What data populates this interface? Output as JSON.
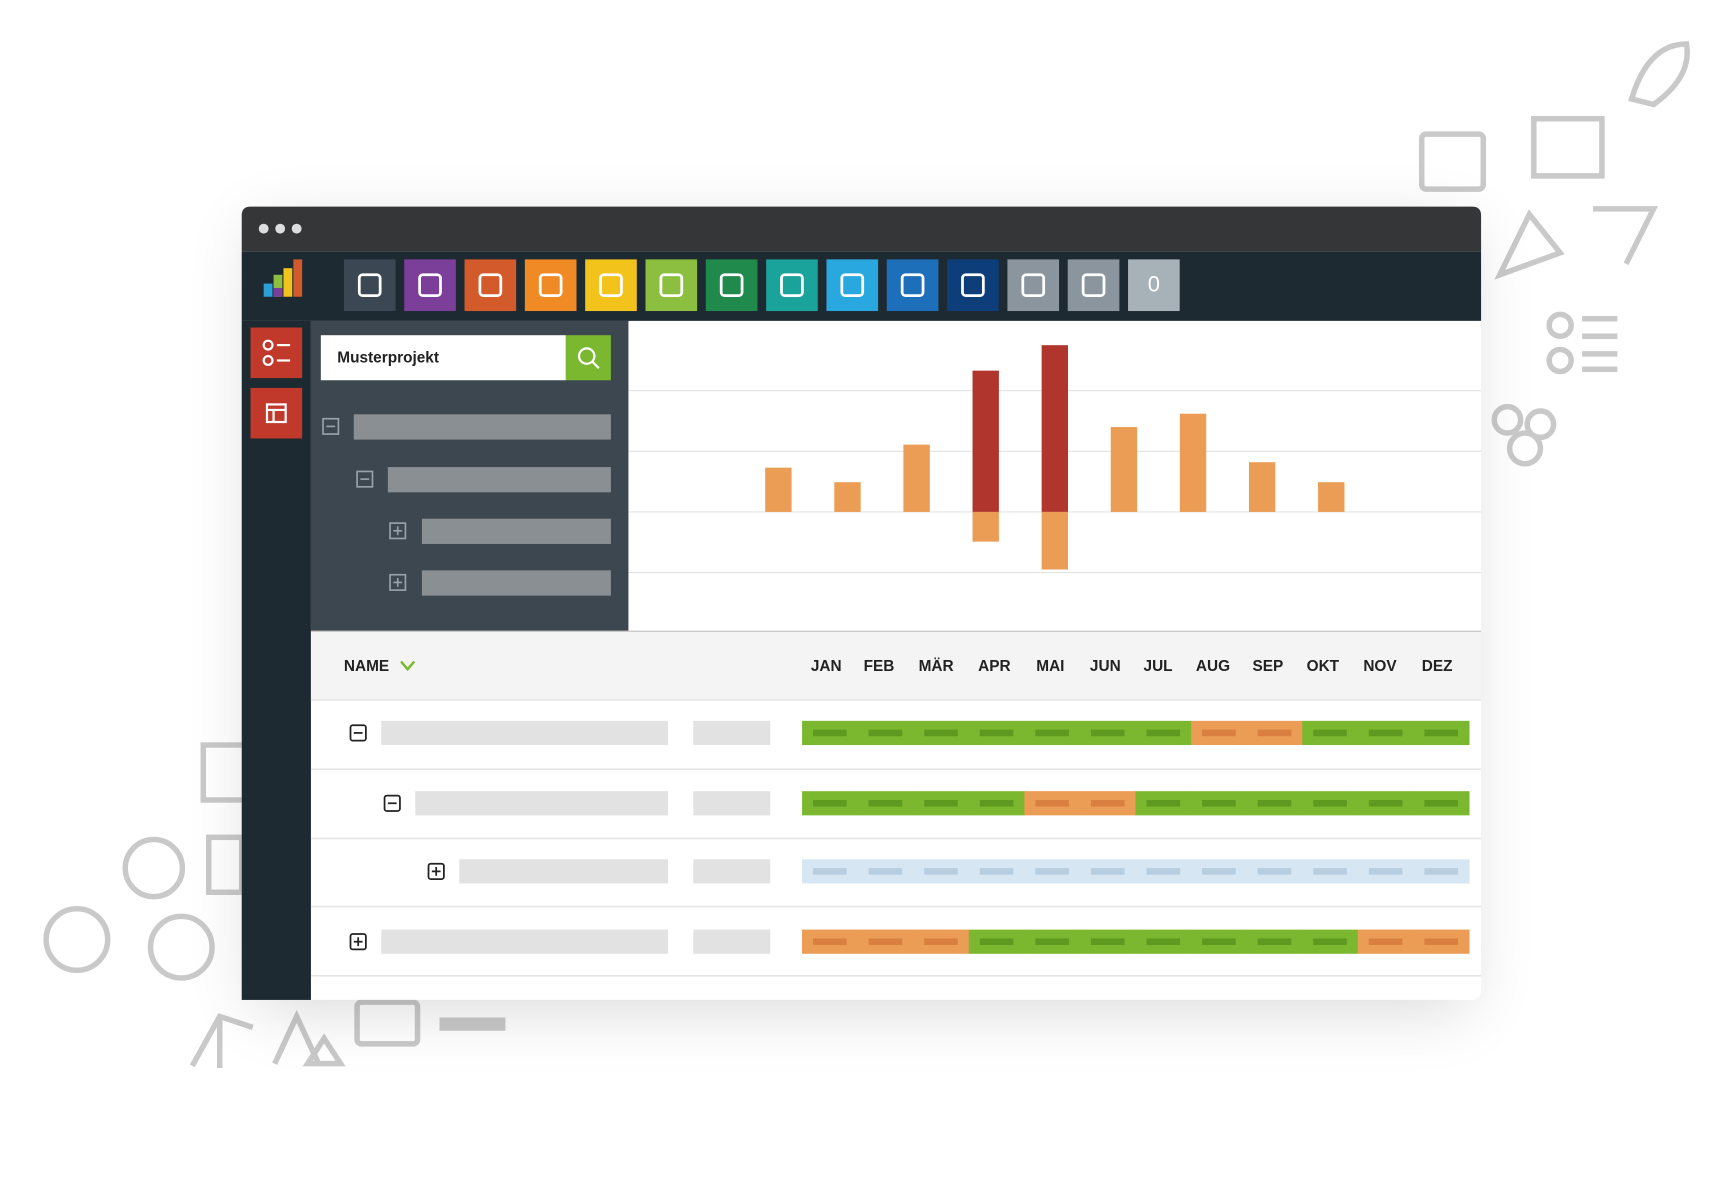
{
  "search": {
    "value": "Musterprojekt"
  },
  "toolbar": {
    "badge": "0"
  },
  "chart_data": {
    "type": "bar",
    "categories": [
      null,
      null,
      null,
      null,
      null,
      null,
      null,
      null,
      null
    ],
    "series": [
      {
        "color": "#eb9c55",
        "values": [
          0.73,
          0.49,
          1.11,
          null,
          null,
          1.4,
          1.62,
          0.82,
          0.49
        ]
      },
      {
        "color": "#b0352d",
        "values": [
          null,
          null,
          null,
          2.33,
          2.75,
          null,
          null,
          null,
          null
        ]
      },
      {
        "color": "#eb9c55",
        "values": [
          null,
          null,
          null,
          -0.49,
          -0.95,
          null,
          null,
          null,
          null
        ]
      }
    ],
    "ylim": [
      -1.96,
      3.15
    ],
    "gridlines": [
      -1,
      0,
      1,
      2
    ],
    "grid": true
  },
  "timeline": {
    "header": "NAME",
    "months": [
      "JAN",
      "FEB",
      "MÄR",
      "APR",
      "MAI",
      "JUN",
      "JUL",
      "AUG",
      "SEP",
      "OKT",
      "NOV",
      "DEZ"
    ],
    "status_colors": {
      "green": [
        "#7cb82f",
        "#5e9a1f"
      ],
      "orange": [
        "#eb9c55",
        "#d98040"
      ],
      "blue": [
        "#d6e6f3",
        "#b7cde0"
      ]
    },
    "rows": [
      {
        "toggle": "minus",
        "level": 0,
        "cells": [
          "green",
          "green",
          "green",
          "green",
          "green",
          "green",
          "green",
          "orange",
          "orange",
          "green",
          "green",
          "green"
        ]
      },
      {
        "toggle": "minus",
        "level": 1,
        "cells": [
          "green",
          "green",
          "green",
          "green",
          "orange",
          "orange",
          "green",
          "green",
          "green",
          "green",
          "green",
          "green"
        ]
      },
      {
        "toggle": "plus",
        "level": 2,
        "cells": [
          "blue",
          "blue",
          "blue",
          "blue",
          "blue",
          "blue",
          "blue",
          "blue",
          "blue",
          "blue",
          "blue",
          "blue"
        ]
      },
      {
        "toggle": "plus",
        "level": 0,
        "cells": [
          "orange",
          "orange",
          "orange",
          "green",
          "green",
          "green",
          "green",
          "green",
          "green",
          "green",
          "orange",
          "orange"
        ]
      }
    ]
  }
}
